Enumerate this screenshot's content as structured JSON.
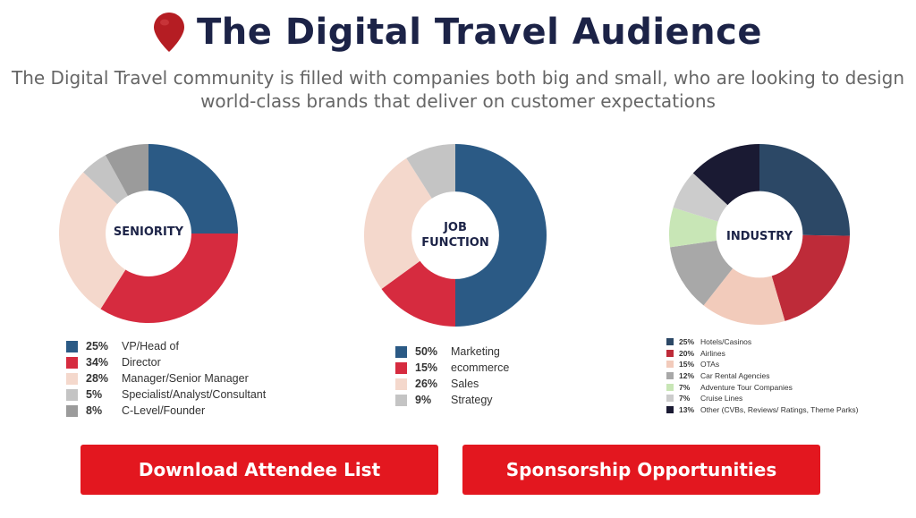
{
  "header": {
    "title": "The Digital Travel Audience",
    "subtitle_line1": "The Digital Travel community is filled with companies both big and small, who are looking to design",
    "subtitle_line2": "world-class brands that deliver on customer expectations",
    "pin_icon": "location-pin-icon",
    "pin_color": "#b51d23"
  },
  "chart_data": [
    {
      "type": "pie",
      "title": "SENIORITY",
      "slices": [
        {
          "pct_label": "25%",
          "label": "VP/Head of",
          "value": 25,
          "color": "#2b5a85"
        },
        {
          "pct_label": "34%",
          "label": "Director",
          "value": 34,
          "color": "#d62b3f"
        },
        {
          "pct_label": "28%",
          "label": "Manager/Senior Manager",
          "value": 28,
          "color": "#f4d8cc"
        },
        {
          "pct_label": "5%",
          "label": "Specialist/Analyst/Consultant",
          "value": 5,
          "color": "#c4c4c4"
        },
        {
          "pct_label": "8%",
          "label": "C-Level/Founder",
          "value": 8,
          "color": "#9b9b9b"
        }
      ]
    },
    {
      "type": "pie",
      "title": "JOB FUNCTION",
      "slices": [
        {
          "pct_label": "50%",
          "label": "Marketing",
          "value": 50,
          "color": "#2b5a85"
        },
        {
          "pct_label": "15%",
          "label": "ecommerce",
          "value": 15,
          "color": "#d62b3f"
        },
        {
          "pct_label": "26%",
          "label": "Sales",
          "value": 26,
          "color": "#f4d8cc"
        },
        {
          "pct_label": "9%",
          "label": "Strategy",
          "value": 9,
          "color": "#c4c4c4"
        }
      ]
    },
    {
      "type": "pie",
      "title": "INDUSTRY",
      "slices": [
        {
          "pct_label": "25%",
          "label": "Hotels/Casinos",
          "value": 25,
          "color": "#2c4866"
        },
        {
          "pct_label": "20%",
          "label": "Airlines",
          "value": 20,
          "color": "#be2b39"
        },
        {
          "pct_label": "15%",
          "label": "OTAs",
          "value": 15,
          "color": "#f2cbbb"
        },
        {
          "pct_label": "12%",
          "label": "Car Rental Agencies",
          "value": 12,
          "color": "#a8a8a8"
        },
        {
          "pct_label": "7%",
          "label": "Adventure Tour Companies",
          "value": 7,
          "color": "#c8e6b6"
        },
        {
          "pct_label": "7%",
          "label": "Cruise Lines",
          "value": 7,
          "color": "#cccccc"
        },
        {
          "pct_label": "13%",
          "label": "Other (CVBs, Reviews/ Ratings, Theme Parks)",
          "value": 13,
          "color": "#1a1a33"
        }
      ]
    }
  ],
  "buttons": {
    "download": "Download Attendee List",
    "sponsorship": "Sponsorship Opportunities",
    "color": "#e3171f"
  }
}
